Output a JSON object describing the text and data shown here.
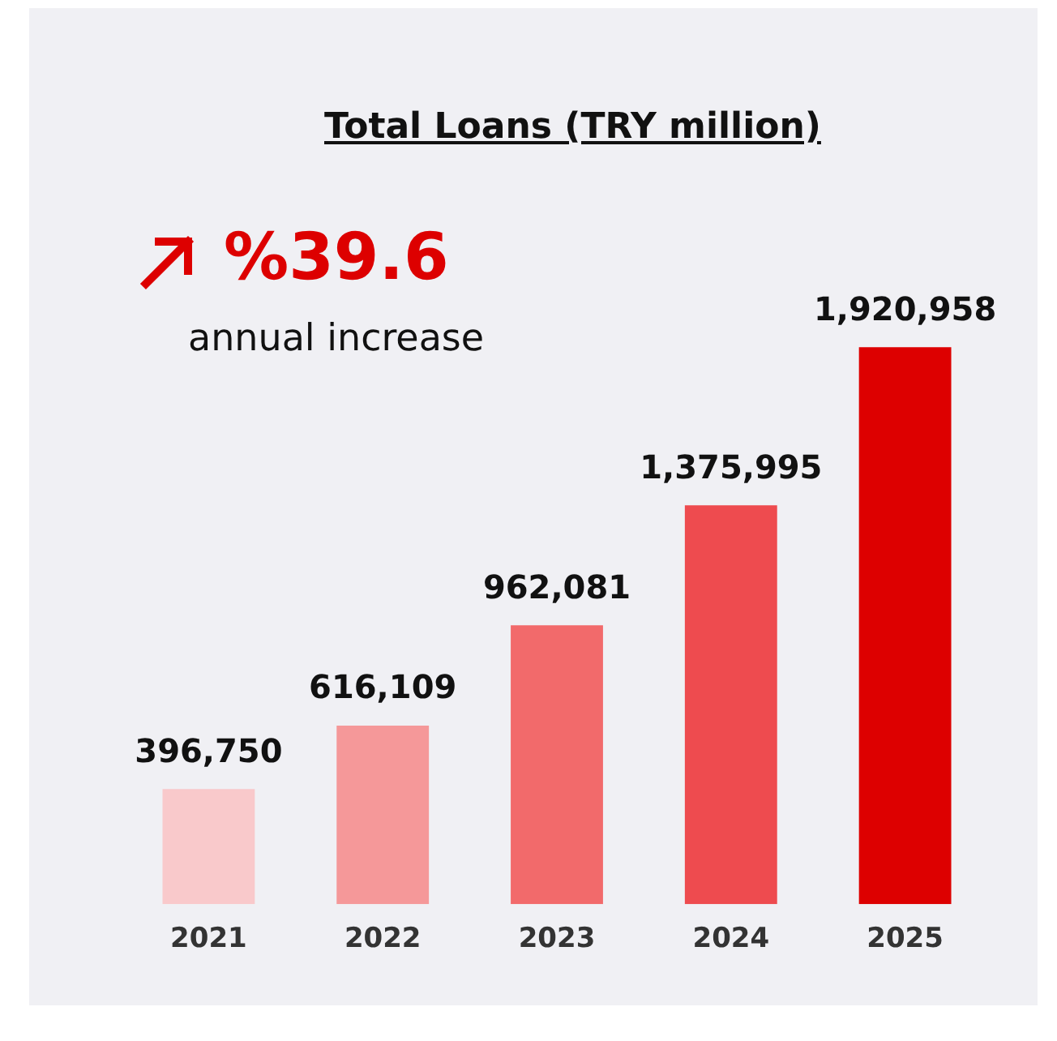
{
  "chart_data": {
    "type": "bar",
    "title": "Total Loans (TRY million)",
    "categories": [
      "2021",
      "2022",
      "2023",
      "2024",
      "2025"
    ],
    "values": [
      396750,
      616109,
      962081,
      1375995,
      1920958
    ],
    "colors": [
      "#f9c9cb",
      "#f59899",
      "#f26a6b",
      "#ee4b4f",
      "#dd0000"
    ],
    "value_labels": [
      "396,750",
      "616,109",
      "962,081",
      "1,375,995",
      "1,920,958"
    ],
    "annotations": [
      "%39.6",
      "annual increase"
    ],
    "grid": false,
    "legend": false
  }
}
